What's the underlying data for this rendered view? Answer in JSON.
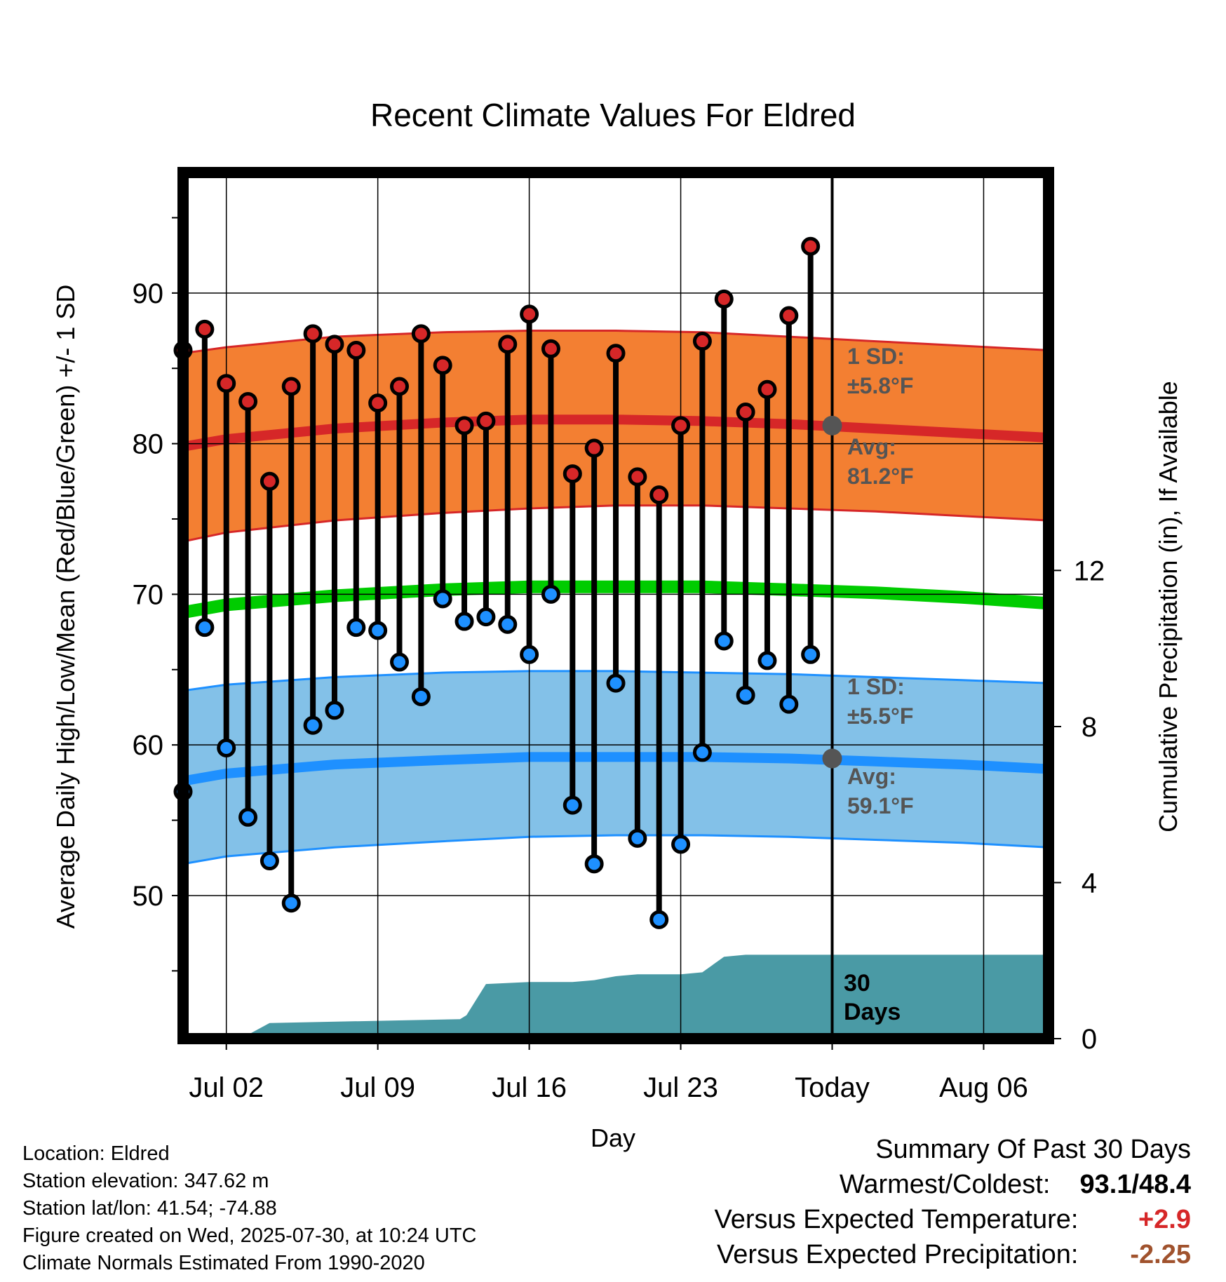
{
  "title": "Recent Climate Values For Eldred",
  "xlabel": "Day",
  "ylabel_left": "Average Daily High/Low/Mean (Red/Blue/Green) +/- 1 SD",
  "ylabel_right": "Cumulative Precipitation (in), If Available",
  "colors": {
    "high_band": "#f37f32",
    "high_line": "#d62728",
    "low_band": "#83c1e8",
    "low_line": "#1e90ff",
    "mean_line": "#00cc00",
    "precip": "#4a9aa5",
    "annotation": "#555555"
  },
  "annotations": {
    "high_sd_label": "1 SD:",
    "high_sd_value": "±5.8°F",
    "high_avg_label": "Avg:",
    "high_avg_value": "81.2°F",
    "low_sd_label": "1 SD:",
    "low_sd_value": "±5.5°F",
    "low_avg_label": "Avg:",
    "low_avg_value": "59.1°F",
    "precip_days": "30",
    "precip_days_label": "Days"
  },
  "footer": {
    "location": "Location: Eldred",
    "elevation": "Station elevation: 347.62 m",
    "latlon": "Station lat/lon: 41.54; -74.88",
    "created": "Figure created on Wed, 2025-07-30, at 10:24 UTC",
    "normals": "Climate Normals Estimated From 1990-2020"
  },
  "summary": {
    "heading": "Summary Of Past 30 Days",
    "warm_label": "Warmest/Coldest:",
    "warm_value": "93.1/48.4",
    "temp_label": "Versus Expected Temperature:",
    "temp_value": "+2.9",
    "precip_label": "Versus Expected Precipitation:",
    "precip_value": "-2.25"
  },
  "chart_data": {
    "type": "line",
    "x_unit": "days (Jul 02 = 0)",
    "x_range": [
      -2,
      38
    ],
    "ylim_left": [
      40.5,
      98
    ],
    "ylim_right": [
      0,
      22.2
    ],
    "yticks_left": [
      50,
      60,
      70,
      80,
      90
    ],
    "yticks_right": [
      0,
      4,
      8,
      12
    ],
    "xticks": [
      {
        "x": 0,
        "label": "Jul 02"
      },
      {
        "x": 7,
        "label": "Jul 09"
      },
      {
        "x": 14,
        "label": "Jul 16"
      },
      {
        "x": 21,
        "label": "Jul 23"
      },
      {
        "x": 28,
        "label": "Today"
      },
      {
        "x": 35,
        "label": "Aug 06"
      }
    ],
    "today_x": 28,
    "normals": {
      "x": [
        -2,
        0,
        5,
        10,
        14,
        18,
        22,
        26,
        30,
        34,
        38
      ],
      "high_avg": [
        79.8,
        80.3,
        81.0,
        81.4,
        81.6,
        81.6,
        81.5,
        81.3,
        81.0,
        80.7,
        80.4
      ],
      "high_upper": [
        86.0,
        86.4,
        87.1,
        87.4,
        87.5,
        87.5,
        87.4,
        87.1,
        86.8,
        86.5,
        86.2
      ],
      "high_lower": [
        73.5,
        74.1,
        74.9,
        75.4,
        75.7,
        75.9,
        75.9,
        75.7,
        75.5,
        75.2,
        74.9
      ],
      "mean_avg": [
        68.8,
        69.3,
        69.9,
        70.3,
        70.5,
        70.5,
        70.5,
        70.3,
        70.1,
        69.8,
        69.4
      ],
      "low_avg": [
        57.6,
        58.1,
        58.7,
        59.0,
        59.2,
        59.2,
        59.2,
        59.1,
        58.9,
        58.7,
        58.4
      ],
      "low_upper": [
        63.6,
        64.0,
        64.5,
        64.8,
        64.9,
        64.9,
        64.8,
        64.7,
        64.5,
        64.3,
        64.1
      ],
      "low_lower": [
        52.1,
        52.6,
        53.2,
        53.6,
        53.9,
        54.0,
        54.0,
        53.9,
        53.7,
        53.5,
        53.2
      ]
    },
    "series": [
      {
        "name": "High",
        "color": "#d62728",
        "values": [
          86.2,
          87.6,
          84.0,
          82.8,
          77.5,
          83.8,
          87.3,
          86.6,
          86.2,
          82.7,
          83.8,
          87.3,
          85.2,
          81.2,
          81.5,
          86.6,
          88.6,
          86.3,
          78.0,
          79.7,
          86.0,
          77.8,
          76.6,
          81.2,
          86.8,
          89.6,
          82.1,
          83.6,
          88.5,
          93.1
        ]
      },
      {
        "name": "Low",
        "color": "#1e90ff",
        "values": [
          56.9,
          67.8,
          59.8,
          55.2,
          52.3,
          49.5,
          61.3,
          62.3,
          67.8,
          67.6,
          65.5,
          63.2,
          69.7,
          68.2,
          68.5,
          68.0,
          66.0,
          70.0,
          56.0,
          52.1,
          64.1,
          53.8,
          48.4,
          53.4,
          59.5,
          66.9,
          63.3,
          65.6,
          62.7,
          66.0
        ]
      }
    ],
    "day_x_start": -2,
    "day_x_step": 1,
    "precip": {
      "x": [
        -2,
        0.7,
        1,
        2,
        10.8,
        11.1,
        12,
        14,
        16,
        17,
        18,
        19,
        20,
        21,
        22,
        23,
        24,
        25,
        38
      ],
      "values": [
        0,
        0,
        0.1,
        0.4,
        0.5,
        0.6,
        1.4,
        1.45,
        1.45,
        1.5,
        1.6,
        1.65,
        1.65,
        1.65,
        1.7,
        2.1,
        2.15,
        2.15,
        2.15
      ]
    }
  }
}
